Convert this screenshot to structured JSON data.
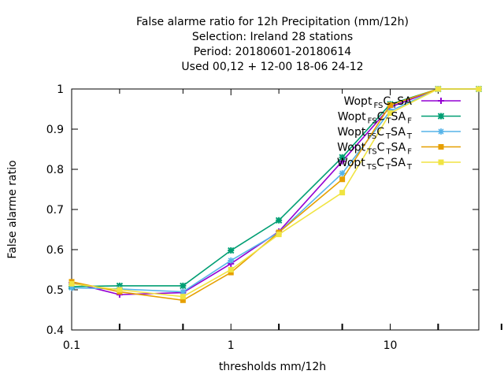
{
  "chart_data": {
    "type": "line",
    "title_lines": [
      "False alarme ratio  for 12h Precipitation (mm/12h)",
      "Selection: Ireland      28 stations",
      "Period: 20180601-20180614",
      "Used  00,12  + 12-00 18-06 24-12"
    ],
    "xlabel": "thresholds mm/12h",
    "ylabel": "False alarme ratio",
    "x_scale": "log",
    "xlim": [
      0.1,
      36
    ],
    "ylim": [
      0.4,
      1.0
    ],
    "x_ticks": [
      {
        "value": 0.1,
        "label": "0.1"
      },
      {
        "value": 1,
        "label": "1"
      },
      {
        "value": 10,
        "label": "10"
      }
    ],
    "x_minor_ticks": [
      0.2,
      0.5,
      2,
      5,
      20,
      50
    ],
    "y_ticks": [
      {
        "value": 0.4,
        "label": "0.4"
      },
      {
        "value": 0.5,
        "label": "0.5"
      },
      {
        "value": 0.6,
        "label": "0.6"
      },
      {
        "value": 0.7,
        "label": "0.7"
      },
      {
        "value": 0.8,
        "label": "0.8"
      },
      {
        "value": 0.9,
        "label": "0.9"
      },
      {
        "value": 1.0,
        "label": "1"
      }
    ],
    "grid": false,
    "legend_position": "top-right",
    "series": [
      {
        "name": "Wopt",
        "sub1": "FS",
        "mid1": "C",
        "sub2": "T",
        "mid2": "S",
        "end": "A",
        "sub3": "",
        "color": "#9400d3",
        "marker": "plus",
        "x": [
          0.1,
          0.2,
          0.5,
          1,
          2,
          5,
          10,
          20,
          36
        ],
        "y": [
          0.518,
          0.488,
          0.493,
          0.565,
          0.645,
          0.82,
          0.955,
          1.0,
          1.0
        ]
      },
      {
        "name": "Wopt",
        "sub1": "FS",
        "mid1": "C",
        "sub2": "T",
        "mid2": "S",
        "end": "A",
        "sub3": "F",
        "color": "#009e73",
        "marker": "x",
        "x": [
          0.1,
          0.2,
          0.5,
          1,
          2,
          5,
          10,
          20,
          36
        ],
        "y": [
          0.508,
          0.51,
          0.51,
          0.598,
          0.673,
          0.83,
          0.962,
          1.0,
          1.0
        ]
      },
      {
        "name": "Wopt",
        "sub1": "FS",
        "mid1": "C",
        "sub2": "T",
        "mid2": "S",
        "end": "A",
        "sub3": "T",
        "color": "#56b4e9",
        "marker": "star",
        "x": [
          0.1,
          0.2,
          0.5,
          1,
          2,
          5,
          10,
          20,
          36
        ],
        "y": [
          0.505,
          0.502,
          0.495,
          0.573,
          0.643,
          0.79,
          0.945,
          1.0,
          1.0
        ]
      },
      {
        "name": "Wopt",
        "sub1": "TS",
        "mid1": "C",
        "sub2": "T",
        "mid2": "S",
        "end": "A",
        "sub3": "F",
        "color": "#e69f00",
        "marker": "box",
        "x": [
          0.1,
          0.2,
          0.5,
          1,
          2,
          5,
          10,
          20,
          36
        ],
        "y": [
          0.52,
          0.495,
          0.474,
          0.543,
          0.643,
          0.775,
          0.96,
          1.0,
          1.0
        ]
      },
      {
        "name": "Wopt",
        "sub1": "TS",
        "mid1": "C",
        "sub2": "T",
        "mid2": "S",
        "end": "A",
        "sub3": "T",
        "color": "#f0e442",
        "marker": "box",
        "x": [
          0.1,
          0.2,
          0.5,
          1,
          2,
          5,
          10,
          20,
          36
        ],
        "y": [
          0.515,
          0.5,
          0.483,
          0.55,
          0.638,
          0.742,
          0.94,
          1.0,
          1.0
        ]
      }
    ]
  }
}
